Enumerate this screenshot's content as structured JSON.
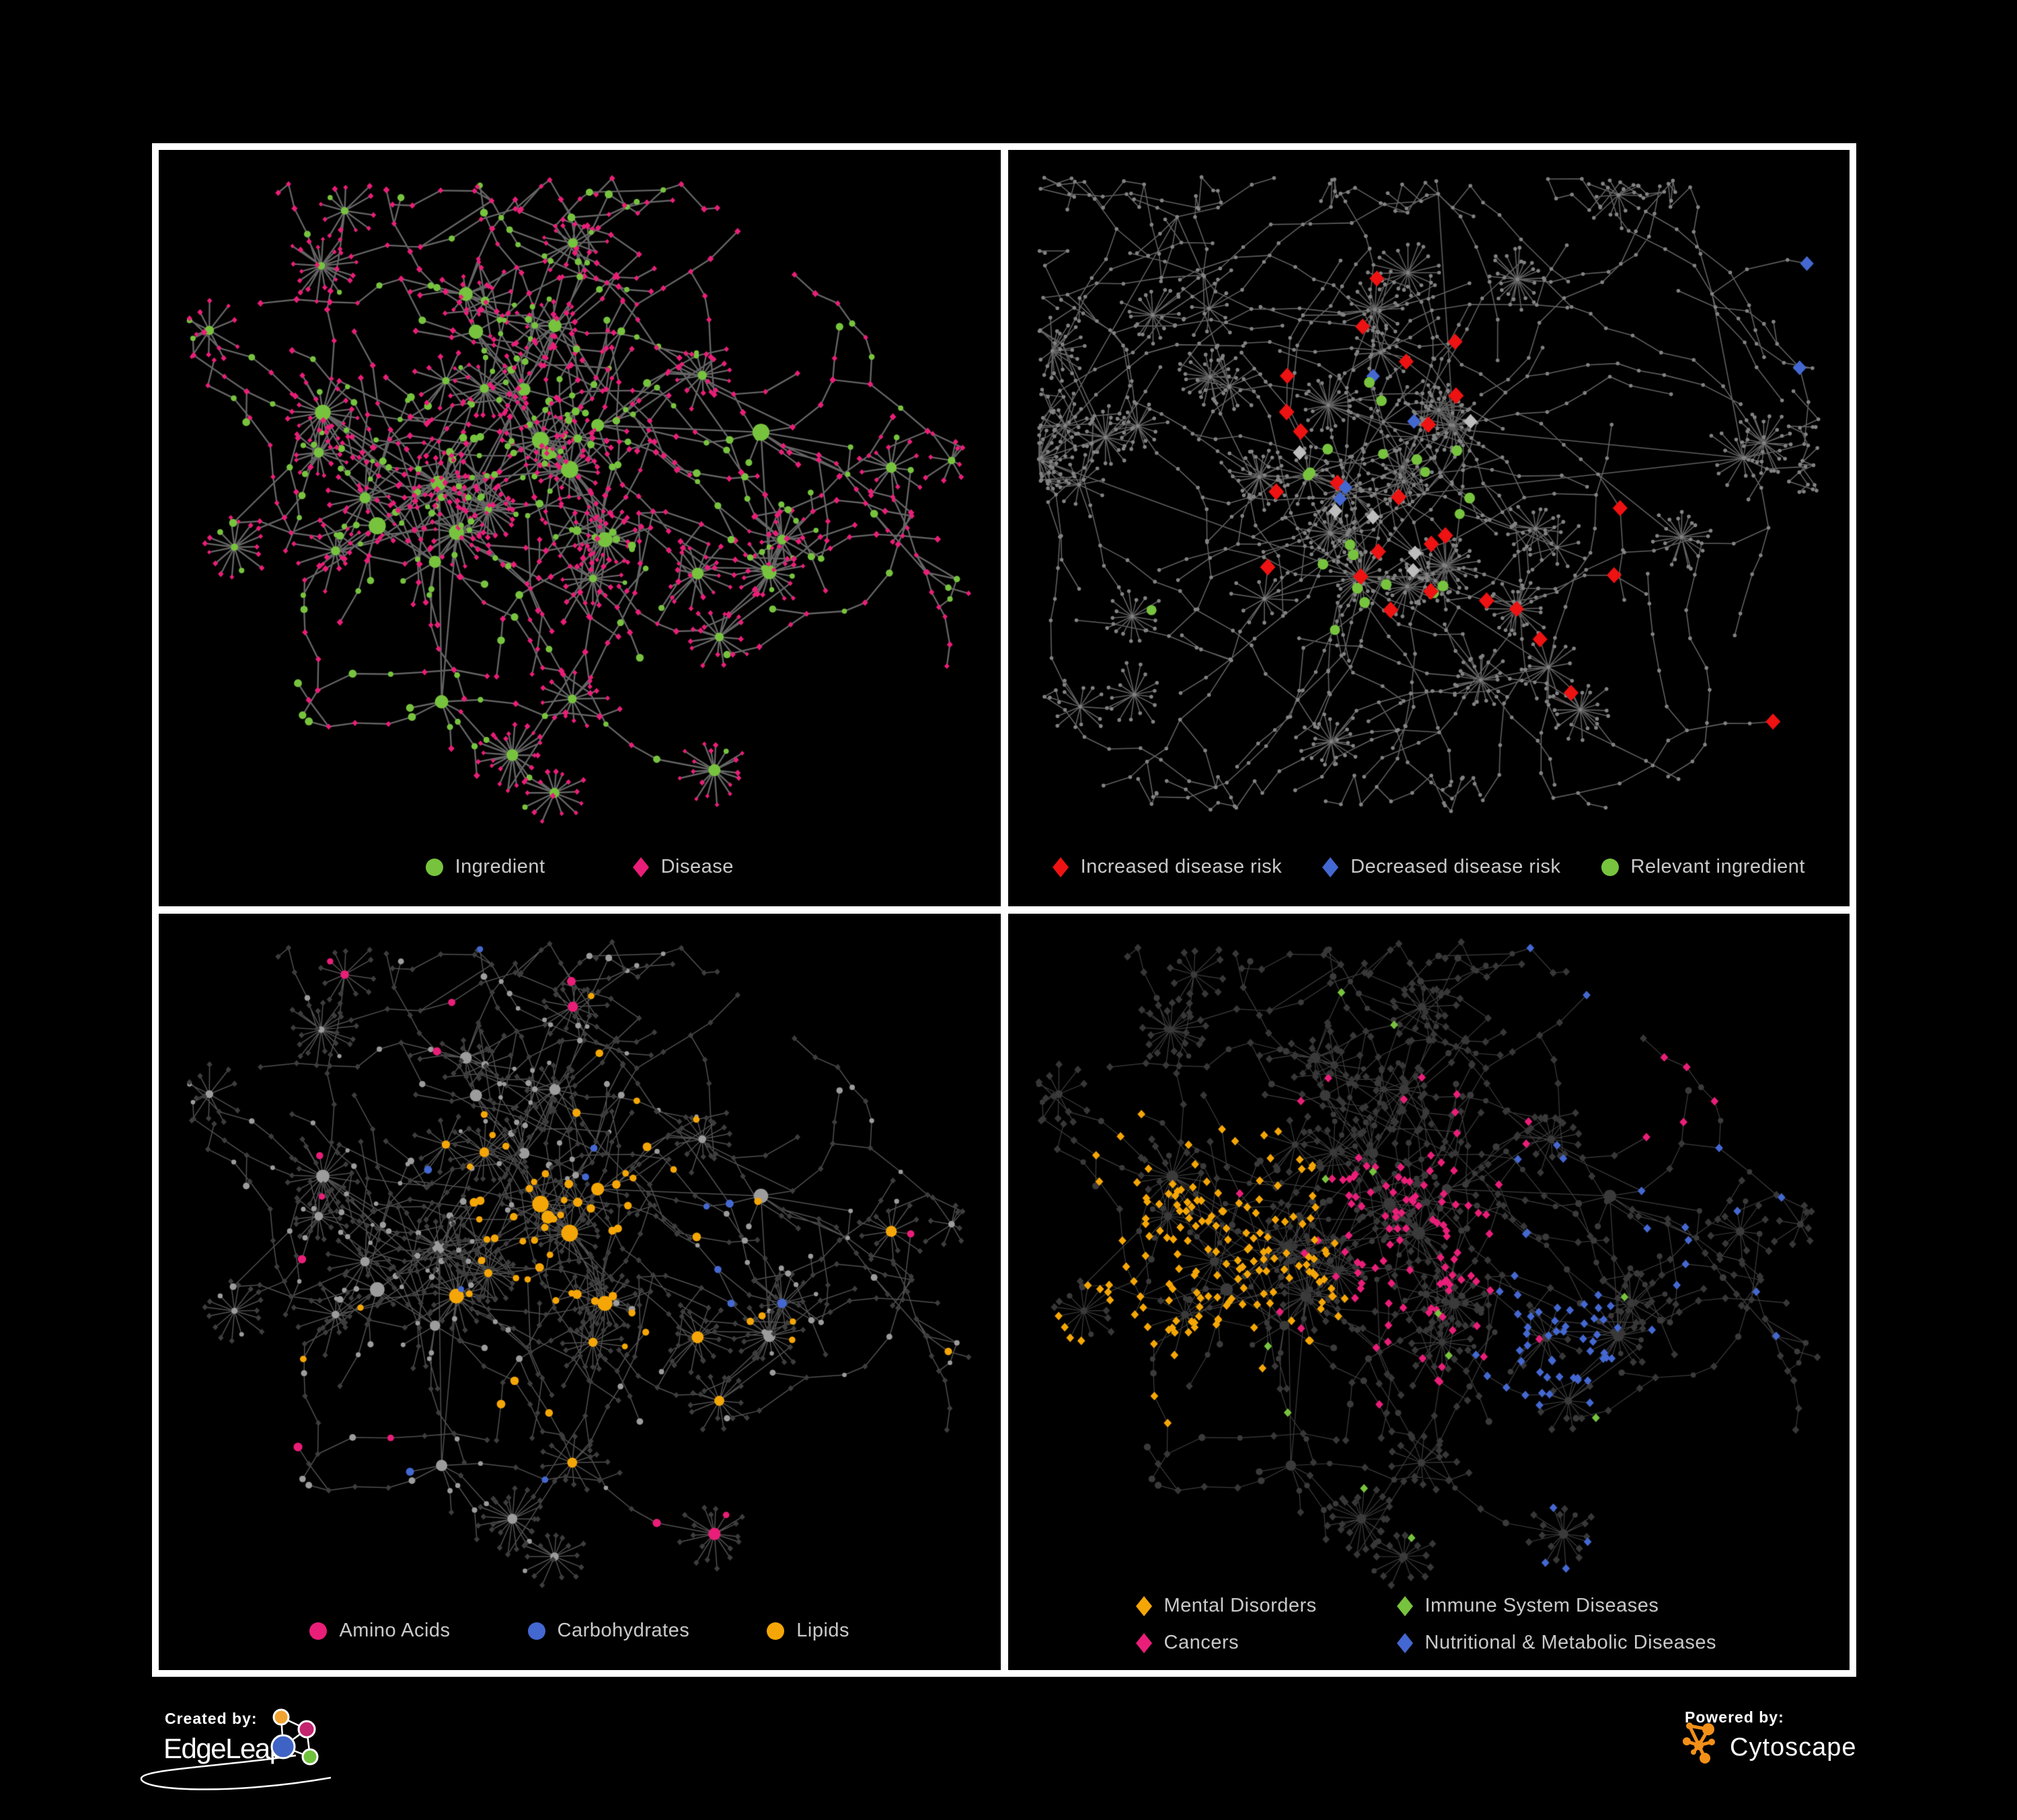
{
  "branding": {
    "created_by": "Created by:",
    "edgeleap": "EdgeLeap",
    "powered_by": "Powered by:",
    "cytoscape": "Cytoscape",
    "edgeleap_node_colors": [
      "#f0a32f",
      "#c4246f",
      "#3e63c4",
      "#6fc03c"
    ],
    "cytoscape_color": "#f39019"
  },
  "colors": {
    "green": "#77c33e",
    "pink": "#e91e78",
    "red": "#ee1212",
    "blue": "#4468d1",
    "orange": "#f5a607",
    "gray_light": "#9c9c9c",
    "gray_dot": "#828282",
    "gray_diamond": "#bdbdbd",
    "dark_node": "#373737",
    "legend_text": "#c9c9c9"
  },
  "panels": [
    {
      "id": "ingredient-disease",
      "legend": [
        {
          "label": "Ingredient",
          "shape": "circle",
          "color": "#77c33e"
        },
        {
          "label": "Disease",
          "shape": "diamond",
          "color": "#e91e78"
        }
      ],
      "legend_gap": 130
    },
    {
      "id": "disease-risk",
      "legend": [
        {
          "label": "Increased disease risk",
          "shape": "diamond",
          "color": "#ee1212"
        },
        {
          "label": "Decreased disease risk",
          "shape": "diamond",
          "color": "#4468d1"
        },
        {
          "label": "Relevant ingredient",
          "shape": "circle",
          "color": "#77c33e"
        }
      ],
      "legend_gap": 60
    },
    {
      "id": "nutrients",
      "legend": [
        {
          "label": "Amino Acids",
          "shape": "circle",
          "color": "#e91e78"
        },
        {
          "label": "Carbohydrates",
          "shape": "circle",
          "color": "#4468d1"
        },
        {
          "label": "Lipids",
          "shape": "circle",
          "color": "#f5a607"
        }
      ],
      "legend_gap": 115
    },
    {
      "id": "disease-categories",
      "legend": [
        {
          "label": "Mental Disorders",
          "shape": "diamond",
          "color": "#f5a607"
        },
        {
          "label": "Immune System Diseases",
          "shape": "diamond",
          "color": "#77c33e"
        },
        {
          "label": "Cancers",
          "shape": "diamond",
          "color": "#e91e78"
        },
        {
          "label": "Nutritional & Metabolic Diseases",
          "shape": "diamond",
          "color": "#4468d1"
        }
      ],
      "legend_two_rows": true
    }
  ],
  "network": {
    "layout_a_seed": 7,
    "layout_b_seed": 23
  }
}
